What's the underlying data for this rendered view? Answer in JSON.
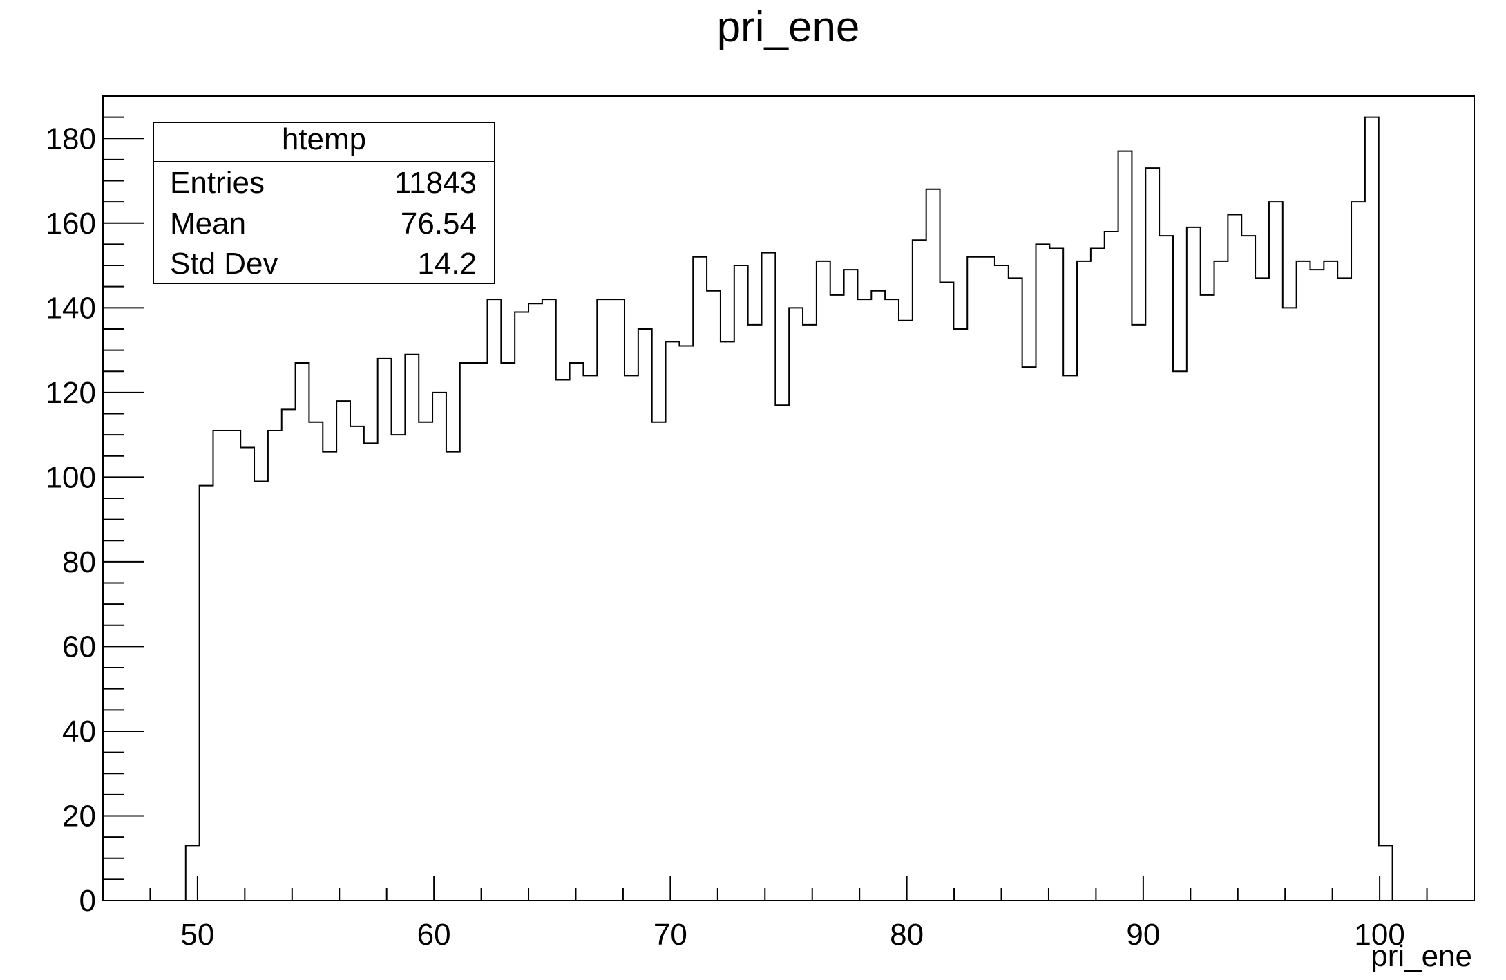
{
  "chart_data": {
    "type": "bar",
    "style": "step-histogram",
    "title": "pri_ene",
    "xlabel": "pri_ene",
    "ylabel": "",
    "xlim": [
      46,
      104
    ],
    "ylim": [
      0,
      190
    ],
    "x_ticks": [
      "50",
      "60",
      "70",
      "80",
      "90",
      "100"
    ],
    "y_ticks": [
      "0",
      "20",
      "40",
      "60",
      "80",
      "100",
      "120",
      "140",
      "160",
      "180"
    ],
    "grid": false,
    "bin_width": 0.58,
    "bin_start": 49.5,
    "values": [
      13,
      98,
      111,
      111,
      107,
      99,
      111,
      116,
      127,
      113,
      106,
      118,
      112,
      108,
      128,
      110,
      129,
      113,
      120,
      106,
      127,
      127,
      142,
      127,
      139,
      141,
      142,
      123,
      127,
      124,
      142,
      142,
      124,
      135,
      113,
      132,
      131,
      152,
      144,
      132,
      150,
      136,
      153,
      117,
      140,
      136,
      151,
      143,
      149,
      142,
      144,
      142,
      137,
      156,
      168,
      146,
      135,
      152,
      152,
      150,
      147,
      126,
      155,
      154,
      124,
      151,
      154,
      158,
      177,
      136,
      173,
      157,
      125,
      159,
      143,
      151,
      162,
      157,
      147,
      165,
      140,
      151,
      149,
      151,
      147,
      165,
      185,
      13
    ],
    "stats_box": {
      "name": "htemp",
      "rows": [
        {
          "label": "Entries",
          "value": "11843"
        },
        {
          "label": "Mean",
          "value": "76.54"
        },
        {
          "label": "Std Dev",
          "value": "14.2"
        }
      ]
    }
  }
}
